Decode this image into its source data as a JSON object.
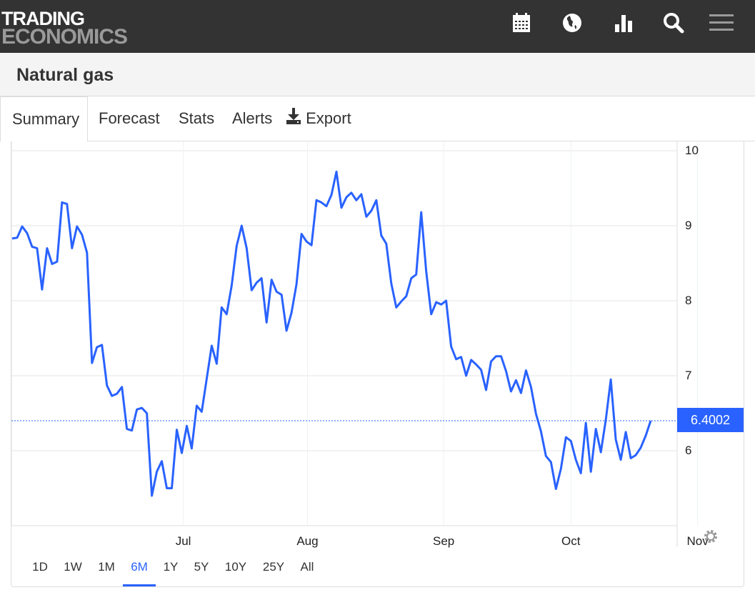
{
  "header": {
    "logo_line1": "TRADING",
    "logo_line2": "ECONOMICS",
    "icons": [
      "calendar-icon",
      "globe-icon",
      "bar-chart-icon",
      "search-icon",
      "menu-icon"
    ]
  },
  "page_title": "Natural gas",
  "tabs": [
    {
      "label": "Summary",
      "active": true
    },
    {
      "label": "Forecast"
    },
    {
      "label": "Stats"
    },
    {
      "label": "Alerts"
    },
    {
      "label": "Export",
      "icon": "download-icon"
    }
  ],
  "ranges": [
    {
      "label": "1D"
    },
    {
      "label": "1W"
    },
    {
      "label": "1M"
    },
    {
      "label": "6M",
      "active": true
    },
    {
      "label": "1Y"
    },
    {
      "label": "5Y"
    },
    {
      "label": "10Y"
    },
    {
      "label": "25Y"
    },
    {
      "label": "All"
    }
  ],
  "colors": {
    "line": "#2962ff",
    "topbar": "#333333"
  },
  "chart_data": {
    "type": "line",
    "title": "Natural gas",
    "last_value_label": "6.4002",
    "last_value": 6.4002,
    "ylim": [
      5.0,
      10.0
    ],
    "yticks": [
      "10",
      "9",
      "8",
      "7",
      "6"
    ],
    "ytick_values": [
      10,
      9,
      8,
      7,
      6
    ],
    "xticks": [
      {
        "label": "Jul",
        "index": 34.3
      },
      {
        "label": "Aug",
        "index": 59.2
      },
      {
        "label": "Sep",
        "index": 86.5
      },
      {
        "label": "Oct",
        "index": 112
      },
      {
        "label": "Nov",
        "index": 137.4
      }
    ],
    "grid": true,
    "values": [
      8.83,
      8.84,
      8.99,
      8.9,
      8.72,
      8.7,
      8.15,
      8.7,
      8.49,
      8.52,
      9.31,
      9.29,
      8.7,
      8.99,
      8.88,
      8.64,
      7.17,
      7.38,
      7.41,
      6.87,
      6.73,
      6.76,
      6.85,
      6.29,
      6.27,
      6.55,
      6.57,
      6.5,
      5.4,
      5.72,
      5.86,
      5.5,
      5.5,
      6.28,
      5.97,
      6.33,
      6.03,
      6.6,
      6.52,
      6.96,
      7.4,
      7.16,
      7.91,
      7.82,
      8.2,
      8.73,
      9.0,
      8.7,
      8.14,
      8.24,
      8.3,
      7.71,
      8.28,
      8.12,
      8.08,
      7.6,
      7.84,
      8.22,
      8.89,
      8.79,
      8.74,
      9.34,
      9.31,
      9.26,
      9.41,
      9.72,
      9.24,
      9.38,
      9.44,
      9.34,
      9.42,
      9.12,
      9.2,
      9.34,
      8.87,
      8.76,
      8.23,
      7.91,
      7.99,
      8.06,
      8.3,
      8.35,
      9.18,
      8.39,
      7.82,
      7.98,
      7.95,
      8.0,
      7.39,
      7.22,
      7.25,
      7.0,
      7.21,
      7.15,
      7.08,
      6.81,
      7.19,
      7.26,
      7.26,
      7.06,
      6.79,
      6.94,
      6.77,
      7.07,
      6.85,
      6.49,
      6.26,
      5.93,
      5.85,
      5.49,
      5.76,
      6.18,
      6.13,
      5.88,
      5.7,
      6.37,
      5.72,
      6.29,
      5.98,
      6.41,
      6.95,
      6.15,
      5.88,
      6.25,
      5.9,
      5.94,
      6.04,
      6.2,
      6.4
    ]
  }
}
